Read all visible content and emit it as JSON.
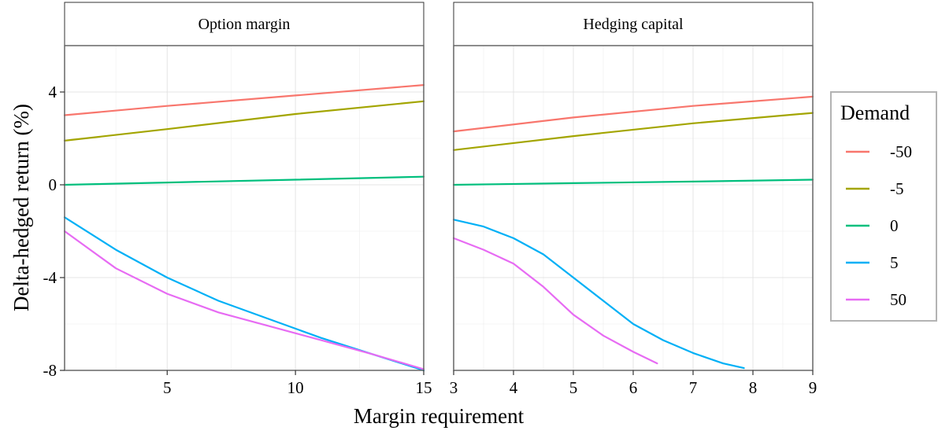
{
  "chart_data": {
    "type": "line",
    "ylabel": "Delta-hedged return (%)",
    "xlabel": "Margin requirement",
    "legend": {
      "title": "Demand",
      "position": "right",
      "entries": [
        {
          "label": "-50",
          "color": "#F8766D"
        },
        {
          "label": "-5",
          "color": "#A3A500"
        },
        {
          "label": "0",
          "color": "#00BF7D"
        },
        {
          "label": "5",
          "color": "#00B0F6"
        },
        {
          "label": "50",
          "color": "#E76BF3"
        }
      ]
    },
    "grid": true,
    "ylim": [
      -8,
      6
    ],
    "yticks": [
      -8,
      -4,
      0,
      4
    ],
    "ytick_labels": [
      "-8",
      "-4",
      "0",
      "4"
    ],
    "panels": [
      {
        "strip": "Option margin",
        "xlim": [
          1,
          15
        ],
        "xticks": [
          5,
          10,
          15
        ],
        "xtick_labels": [
          "5",
          "10",
          "15"
        ],
        "series": [
          {
            "name": "-50",
            "color": "#F8766D",
            "points": [
              [
                1,
                3.0
              ],
              [
                5,
                3.4
              ],
              [
                10,
                3.85
              ],
              [
                15,
                4.3
              ]
            ]
          },
          {
            "name": "-5",
            "color": "#A3A500",
            "points": [
              [
                1,
                1.9
              ],
              [
                5,
                2.4
              ],
              [
                10,
                3.05
              ],
              [
                15,
                3.6
              ]
            ]
          },
          {
            "name": "0",
            "color": "#00BF7D",
            "points": [
              [
                1,
                0.0
              ],
              [
                5,
                0.1
              ],
              [
                10,
                0.22
              ],
              [
                15,
                0.35
              ]
            ]
          },
          {
            "name": "5",
            "color": "#00B0F6",
            "points": [
              [
                1,
                -1.4
              ],
              [
                3,
                -2.8
              ],
              [
                5,
                -4.0
              ],
              [
                7,
                -5.0
              ],
              [
                9,
                -5.8
              ],
              [
                11,
                -6.6
              ],
              [
                13,
                -7.3
              ],
              [
                15,
                -8.0
              ]
            ]
          },
          {
            "name": "50",
            "color": "#E76BF3",
            "points": [
              [
                1,
                -2.0
              ],
              [
                3,
                -3.6
              ],
              [
                5,
                -4.7
              ],
              [
                7,
                -5.5
              ],
              [
                9,
                -6.1
              ],
              [
                11,
                -6.7
              ],
              [
                13,
                -7.3
              ],
              [
                15,
                -7.95
              ]
            ]
          }
        ]
      },
      {
        "strip": "Hedging capital",
        "xlim": [
          3,
          9
        ],
        "xticks": [
          3,
          4,
          5,
          6,
          7,
          8,
          9
        ],
        "xtick_labels": [
          "3",
          "4",
          "5",
          "6",
          "7",
          "8",
          "9"
        ],
        "series": [
          {
            "name": "-50",
            "color": "#F8766D",
            "points": [
              [
                3,
                2.3
              ],
              [
                5,
                2.9
              ],
              [
                7,
                3.4
              ],
              [
                9,
                3.8
              ]
            ]
          },
          {
            "name": "-5",
            "color": "#A3A500",
            "points": [
              [
                3,
                1.5
              ],
              [
                5,
                2.1
              ],
              [
                7,
                2.65
              ],
              [
                9,
                3.1
              ]
            ]
          },
          {
            "name": "0",
            "color": "#00BF7D",
            "points": [
              [
                3,
                0.0
              ],
              [
                5,
                0.07
              ],
              [
                7,
                0.14
              ],
              [
                9,
                0.22
              ]
            ]
          },
          {
            "name": "5",
            "color": "#00B0F6",
            "points": [
              [
                3,
                -1.5
              ],
              [
                3.5,
                -1.8
              ],
              [
                4,
                -2.3
              ],
              [
                4.5,
                -3.0
              ],
              [
                5,
                -4.0
              ],
              [
                5.5,
                -5.0
              ],
              [
                6,
                -6.0
              ],
              [
                6.5,
                -6.7
              ],
              [
                7,
                -7.25
              ],
              [
                7.5,
                -7.7
              ],
              [
                7.85,
                -7.9
              ]
            ]
          },
          {
            "name": "50",
            "color": "#E76BF3",
            "points": [
              [
                3,
                -2.3
              ],
              [
                3.5,
                -2.8
              ],
              [
                4,
                -3.4
              ],
              [
                4.5,
                -4.4
              ],
              [
                5,
                -5.6
              ],
              [
                5.5,
                -6.5
              ],
              [
                6,
                -7.2
              ],
              [
                6.4,
                -7.7
              ]
            ]
          }
        ]
      }
    ]
  }
}
